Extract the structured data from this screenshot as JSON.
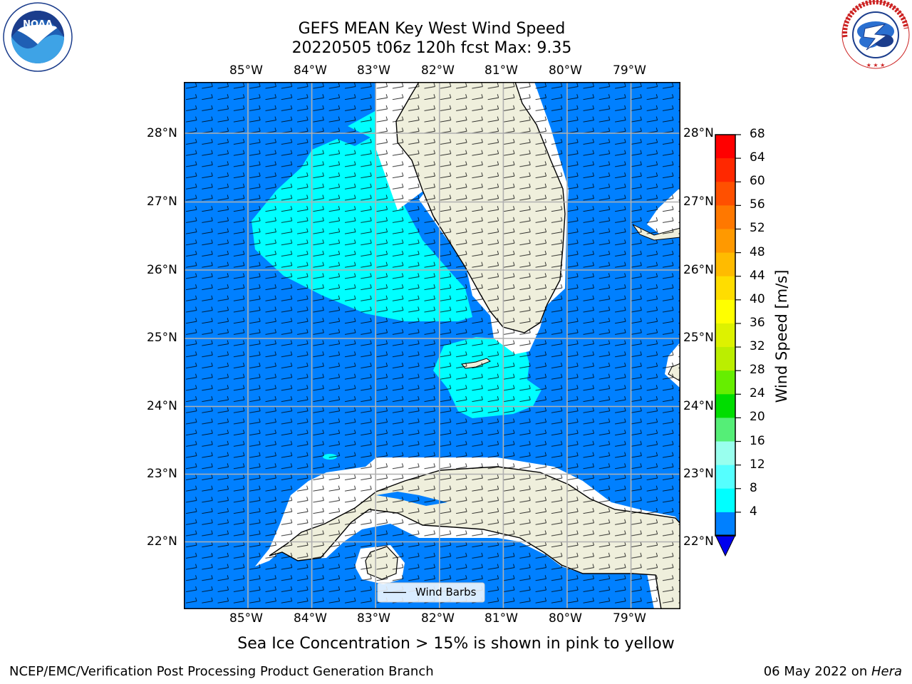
{
  "header": {
    "title_line1": "GEFS MEAN Key West Wind Speed",
    "title_line2": "20220505 t06z 120h fcst   Max: 9.35"
  },
  "logos": {
    "left": {
      "name": "NOAA",
      "ring_text": "NATIONAL OCEANIC AND ATMOSPHERIC ADMINISTRATION · U.S. DEPARTMENT OF COMMERCE"
    },
    "right": {
      "name": "NATIONAL WEATHER SERVICE"
    }
  },
  "map": {
    "lon_labels": [
      "85°W",
      "84°W",
      "83°W",
      "82°W",
      "81°W",
      "80°W",
      "79°W"
    ],
    "lat_labels": [
      "28°N",
      "27°N",
      "26°N",
      "25°N",
      "24°N",
      "23°N",
      "22°N"
    ],
    "legend_label": "Wind Barbs",
    "colors": {
      "ocean_4_8": "#0080ff",
      "band_8_12": "#00ffff",
      "land": "#efefdc",
      "grid": "#b0b0b0"
    }
  },
  "colorbar": {
    "label": "Wind Speed [m/s]",
    "ticks": [
      "68",
      "64",
      "60",
      "56",
      "52",
      "48",
      "44",
      "40",
      "36",
      "32",
      "28",
      "24",
      "20",
      "16",
      "12",
      "8",
      "4"
    ],
    "colors": [
      "#ff0000",
      "#ff2800",
      "#ff5000",
      "#ff7800",
      "#ff9900",
      "#ffbb00",
      "#ffdd00",
      "#ffff00",
      "#ddf200",
      "#bbee00",
      "#66ee00",
      "#00dd00",
      "#55ee77",
      "#99ffee",
      "#55ffff",
      "#00ffff",
      "#0080ff"
    ],
    "under_color": "#0000ee"
  },
  "caption": "Sea Ice Concentration > 15% is shown in pink to yellow",
  "footer": {
    "left": "NCEP/EMC/Verification Post Processing Product Generation Branch",
    "right_date": "06 May 2022 on ",
    "right_host": "Hera"
  }
}
